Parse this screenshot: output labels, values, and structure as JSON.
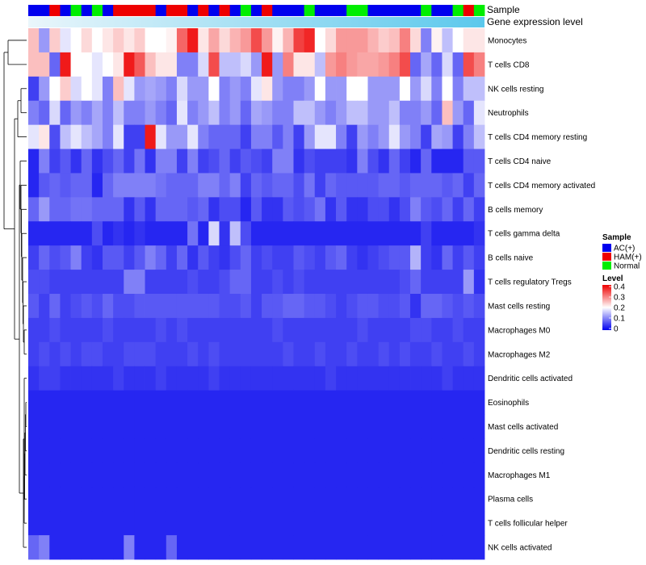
{
  "chart_data": {
    "type": "heatmap",
    "title": "",
    "annotation": {
      "sample_label": "Sample",
      "expression_label": "Gene expression level",
      "sample_groups": [
        "AC(+)",
        "HAM(+)",
        "Normal"
      ],
      "sample_colors": {
        "AC(+)": "#0000ee",
        "HAM(+)": "#ee0000",
        "Normal": "#00ee00"
      },
      "expression_color": "#5bc8ec",
      "sample_assignments": [
        "AC(+)",
        "AC(+)",
        "HAM(+)",
        "AC(+)",
        "Normal",
        "AC(+)",
        "Normal",
        "AC(+)",
        "HAM(+)",
        "HAM(+)",
        "HAM(+)",
        "HAM(+)",
        "AC(+)",
        "HAM(+)",
        "HAM(+)",
        "AC(+)",
        "HAM(+)",
        "AC(+)",
        "HAM(+)",
        "AC(+)",
        "Normal",
        "AC(+)",
        "HAM(+)",
        "AC(+)",
        "AC(+)",
        "AC(+)",
        "Normal",
        "AC(+)",
        "AC(+)",
        "AC(+)",
        "Normal",
        "Normal",
        "AC(+)",
        "AC(+)",
        "AC(+)",
        "AC(+)",
        "AC(+)",
        "Normal",
        "AC(+)",
        "AC(+)",
        "Normal",
        "HAM(+)",
        "Normal"
      ]
    },
    "rows": [
      "Monocytes",
      "T cells CD8",
      "NK cells resting",
      "Neutrophils",
      "T cells CD4 memory resting",
      "T cells CD4 naive",
      "T cells CD4 memory activated",
      "B cells memory",
      "T cells gamma delta",
      "B cells naive",
      "T cells regulatory  Tregs",
      "Mast cells resting",
      "Macrophages M0",
      "Macrophages M2",
      "Dendritic cells activated",
      "Eosinophils",
      "Mast cells activated",
      "Dendritic cells resting",
      "Macrophages M1",
      "Plasma cells",
      "T cells follicular helper",
      "NK cells activated"
    ],
    "values": [
      [
        0.25,
        0.12,
        0.24,
        0.18,
        0.2,
        0.23,
        0.2,
        0.22,
        0.24,
        0.22,
        0.24,
        0.2,
        0.2,
        0.21,
        0.32,
        0.38,
        0.22,
        0.27,
        0.23,
        0.26,
        0.28,
        0.34,
        0.28,
        0.21,
        0.26,
        0.35,
        0.37,
        0.2,
        0.23,
        0.28,
        0.28,
        0.28,
        0.26,
        0.24,
        0.25,
        0.3,
        0.23,
        0.1,
        0.21,
        0.15,
        0.2,
        0.22,
        0.22
      ],
      [
        0.25,
        0.25,
        0.08,
        0.38,
        0.2,
        0.2,
        0.18,
        0.2,
        0.22,
        0.38,
        0.33,
        0.25,
        0.22,
        0.22,
        0.1,
        0.1,
        0.17,
        0.34,
        0.15,
        0.15,
        0.17,
        0.12,
        0.38,
        0.12,
        0.3,
        0.22,
        0.22,
        0.15,
        0.28,
        0.3,
        0.28,
        0.27,
        0.27,
        0.28,
        0.3,
        0.34,
        0.08,
        0.13,
        0.08,
        0.17,
        0.08,
        0.34,
        0.3
      ],
      [
        0.05,
        0.12,
        0.2,
        0.24,
        0.17,
        0.2,
        0.18,
        0.1,
        0.25,
        0.18,
        0.12,
        0.13,
        0.12,
        0.1,
        0.17,
        0.12,
        0.12,
        0.2,
        0.1,
        0.12,
        0.1,
        0.18,
        0.22,
        0.12,
        0.1,
        0.1,
        0.12,
        0.2,
        0.12,
        0.12,
        0.2,
        0.2,
        0.12,
        0.12,
        0.12,
        0.2,
        0.12,
        0.17,
        0.1,
        0.2,
        0.1,
        0.15,
        0.15
      ],
      [
        0.1,
        0.08,
        0.17,
        0.08,
        0.12,
        0.1,
        0.13,
        0.1,
        0.15,
        0.1,
        0.1,
        0.12,
        0.1,
        0.08,
        0.18,
        0.1,
        0.12,
        0.15,
        0.1,
        0.12,
        0.08,
        0.13,
        0.12,
        0.1,
        0.1,
        0.15,
        0.15,
        0.12,
        0.1,
        0.12,
        0.15,
        0.15,
        0.12,
        0.12,
        0.15,
        0.1,
        0.1,
        0.12,
        0.08,
        0.25,
        0.12,
        0.08,
        0.18
      ],
      [
        0.18,
        0.22,
        0.06,
        0.15,
        0.18,
        0.15,
        0.13,
        0.1,
        0.18,
        0.05,
        0.05,
        0.38,
        0.18,
        0.12,
        0.12,
        0.18,
        0.1,
        0.08,
        0.08,
        0.08,
        0.05,
        0.1,
        0.1,
        0.07,
        0.1,
        0.05,
        0.12,
        0.18,
        0.18,
        0.1,
        0.05,
        0.12,
        0.1,
        0.12,
        0.18,
        0.12,
        0.1,
        0.05,
        0.13,
        0.12,
        0.05,
        0.1,
        0.15
      ],
      [
        0.03,
        0.1,
        0.05,
        0.07,
        0.04,
        0.08,
        0.04,
        0.06,
        0.08,
        0.05,
        0.09,
        0.04,
        0.1,
        0.1,
        0.05,
        0.1,
        0.05,
        0.06,
        0.08,
        0.05,
        0.07,
        0.06,
        0.05,
        0.1,
        0.1,
        0.04,
        0.06,
        0.05,
        0.05,
        0.05,
        0.04,
        0.1,
        0.06,
        0.04,
        0.08,
        0.05,
        0.03,
        0.08,
        0.03,
        0.03,
        0.03,
        0.07,
        0.07
      ],
      [
        0.03,
        0.07,
        0.08,
        0.07,
        0.08,
        0.08,
        0.03,
        0.08,
        0.1,
        0.1,
        0.1,
        0.1,
        0.09,
        0.08,
        0.08,
        0.08,
        0.1,
        0.1,
        0.08,
        0.1,
        0.05,
        0.08,
        0.07,
        0.08,
        0.08,
        0.06,
        0.09,
        0.05,
        0.08,
        0.07,
        0.07,
        0.07,
        0.07,
        0.08,
        0.08,
        0.07,
        0.08,
        0.08,
        0.08,
        0.07,
        0.08,
        0.05,
        0.08
      ],
      [
        0.08,
        0.12,
        0.08,
        0.08,
        0.09,
        0.09,
        0.08,
        0.08,
        0.08,
        0.04,
        0.07,
        0.04,
        0.08,
        0.08,
        0.08,
        0.07,
        0.08,
        0.04,
        0.06,
        0.06,
        0.03,
        0.07,
        0.04,
        0.04,
        0.07,
        0.06,
        0.07,
        0.09,
        0.04,
        0.07,
        0.04,
        0.04,
        0.06,
        0.06,
        0.04,
        0.06,
        0.1,
        0.07,
        0.06,
        0.08,
        0.05,
        0.08,
        0.05
      ],
      [
        0.03,
        0.03,
        0.03,
        0.03,
        0.03,
        0.03,
        0.06,
        0.03,
        0.04,
        0.03,
        0.04,
        0.03,
        0.03,
        0.03,
        0.03,
        0.09,
        0.03,
        0.17,
        0.04,
        0.15,
        0.06,
        0.03,
        0.03,
        0.03,
        0.03,
        0.03,
        0.03,
        0.03,
        0.03,
        0.03,
        0.03,
        0.03,
        0.03,
        0.03,
        0.03,
        0.03,
        0.03,
        0.05,
        0.03,
        0.03,
        0.03,
        0.03,
        0.04
      ],
      [
        0.05,
        0.08,
        0.06,
        0.07,
        0.1,
        0.05,
        0.04,
        0.07,
        0.07,
        0.05,
        0.07,
        0.1,
        0.08,
        0.05,
        0.08,
        0.04,
        0.07,
        0.05,
        0.04,
        0.06,
        0.08,
        0.05,
        0.06,
        0.05,
        0.05,
        0.07,
        0.06,
        0.05,
        0.07,
        0.08,
        0.05,
        0.04,
        0.05,
        0.06,
        0.07,
        0.07,
        0.14,
        0.05,
        0.04,
        0.08,
        0.05,
        0.07,
        0.05
      ],
      [
        0.06,
        0.06,
        0.05,
        0.05,
        0.05,
        0.05,
        0.05,
        0.05,
        0.05,
        0.1,
        0.1,
        0.05,
        0.05,
        0.05,
        0.05,
        0.06,
        0.05,
        0.05,
        0.06,
        0.08,
        0.08,
        0.05,
        0.05,
        0.06,
        0.05,
        0.06,
        0.05,
        0.05,
        0.05,
        0.05,
        0.05,
        0.05,
        0.05,
        0.05,
        0.05,
        0.06,
        0.08,
        0.05,
        0.05,
        0.05,
        0.05,
        0.12,
        0.04
      ],
      [
        0.07,
        0.05,
        0.08,
        0.05,
        0.06,
        0.07,
        0.06,
        0.08,
        0.06,
        0.06,
        0.07,
        0.07,
        0.07,
        0.07,
        0.07,
        0.07,
        0.07,
        0.07,
        0.06,
        0.06,
        0.07,
        0.05,
        0.07,
        0.07,
        0.08,
        0.08,
        0.07,
        0.07,
        0.06,
        0.05,
        0.06,
        0.07,
        0.07,
        0.06,
        0.06,
        0.07,
        0.04,
        0.08,
        0.08,
        0.07,
        0.06,
        0.07,
        0.06
      ],
      [
        0.05,
        0.05,
        0.06,
        0.05,
        0.05,
        0.05,
        0.05,
        0.06,
        0.05,
        0.05,
        0.05,
        0.05,
        0.06,
        0.05,
        0.06,
        0.05,
        0.05,
        0.05,
        0.05,
        0.05,
        0.05,
        0.05,
        0.05,
        0.06,
        0.05,
        0.05,
        0.05,
        0.05,
        0.05,
        0.05,
        0.05,
        0.06,
        0.05,
        0.05,
        0.05,
        0.05,
        0.06,
        0.06,
        0.05,
        0.05,
        0.06,
        0.05,
        0.05
      ],
      [
        0.05,
        0.06,
        0.05,
        0.06,
        0.05,
        0.06,
        0.06,
        0.05,
        0.05,
        0.06,
        0.06,
        0.06,
        0.05,
        0.05,
        0.05,
        0.06,
        0.05,
        0.06,
        0.05,
        0.05,
        0.05,
        0.05,
        0.05,
        0.05,
        0.06,
        0.05,
        0.05,
        0.06,
        0.05,
        0.05,
        0.06,
        0.05,
        0.05,
        0.06,
        0.05,
        0.06,
        0.05,
        0.05,
        0.06,
        0.05,
        0.05,
        0.06,
        0.05
      ],
      [
        0.04,
        0.05,
        0.05,
        0.04,
        0.04,
        0.04,
        0.04,
        0.04,
        0.05,
        0.04,
        0.04,
        0.04,
        0.05,
        0.04,
        0.04,
        0.04,
        0.04,
        0.05,
        0.04,
        0.04,
        0.04,
        0.04,
        0.04,
        0.04,
        0.04,
        0.04,
        0.04,
        0.04,
        0.05,
        0.04,
        0.04,
        0.04,
        0.04,
        0.04,
        0.04,
        0.04,
        0.04,
        0.04,
        0.04,
        0.05,
        0.04,
        0.04,
        0.04
      ],
      [
        0.03,
        0.03,
        0.03,
        0.03,
        0.03,
        0.03,
        0.03,
        0.03,
        0.03,
        0.03,
        0.03,
        0.03,
        0.03,
        0.03,
        0.03,
        0.03,
        0.03,
        0.03,
        0.03,
        0.03,
        0.03,
        0.03,
        0.03,
        0.03,
        0.03,
        0.03,
        0.03,
        0.03,
        0.03,
        0.03,
        0.03,
        0.03,
        0.03,
        0.03,
        0.03,
        0.03,
        0.03,
        0.03,
        0.03,
        0.03,
        0.03,
        0.03,
        0.03
      ],
      [
        0.03,
        0.03,
        0.03,
        0.03,
        0.03,
        0.03,
        0.03,
        0.03,
        0.03,
        0.03,
        0.03,
        0.03,
        0.03,
        0.03,
        0.03,
        0.03,
        0.03,
        0.03,
        0.03,
        0.03,
        0.03,
        0.03,
        0.03,
        0.03,
        0.03,
        0.03,
        0.03,
        0.03,
        0.03,
        0.03,
        0.03,
        0.03,
        0.03,
        0.03,
        0.03,
        0.03,
        0.03,
        0.03,
        0.03,
        0.03,
        0.03,
        0.03,
        0.03
      ],
      [
        0.03,
        0.03,
        0.03,
        0.03,
        0.03,
        0.03,
        0.03,
        0.03,
        0.03,
        0.03,
        0.03,
        0.03,
        0.03,
        0.03,
        0.03,
        0.03,
        0.03,
        0.03,
        0.03,
        0.03,
        0.03,
        0.03,
        0.03,
        0.03,
        0.03,
        0.03,
        0.03,
        0.03,
        0.03,
        0.03,
        0.03,
        0.03,
        0.03,
        0.03,
        0.03,
        0.03,
        0.03,
        0.03,
        0.03,
        0.03,
        0.03,
        0.03,
        0.03
      ],
      [
        0.03,
        0.03,
        0.03,
        0.03,
        0.03,
        0.03,
        0.03,
        0.03,
        0.03,
        0.03,
        0.03,
        0.03,
        0.03,
        0.03,
        0.03,
        0.03,
        0.03,
        0.03,
        0.03,
        0.03,
        0.03,
        0.03,
        0.03,
        0.03,
        0.03,
        0.03,
        0.03,
        0.03,
        0.03,
        0.03,
        0.03,
        0.03,
        0.03,
        0.03,
        0.03,
        0.03,
        0.03,
        0.03,
        0.03,
        0.03,
        0.03,
        0.03,
        0.03
      ],
      [
        0.03,
        0.03,
        0.03,
        0.03,
        0.03,
        0.03,
        0.03,
        0.03,
        0.03,
        0.03,
        0.03,
        0.03,
        0.03,
        0.03,
        0.03,
        0.03,
        0.03,
        0.03,
        0.03,
        0.03,
        0.03,
        0.03,
        0.03,
        0.03,
        0.03,
        0.03,
        0.03,
        0.03,
        0.03,
        0.03,
        0.03,
        0.03,
        0.03,
        0.03,
        0.03,
        0.03,
        0.03,
        0.03,
        0.03,
        0.03,
        0.03,
        0.03,
        0.03
      ],
      [
        0.03,
        0.03,
        0.03,
        0.03,
        0.03,
        0.03,
        0.03,
        0.03,
        0.03,
        0.03,
        0.03,
        0.03,
        0.03,
        0.03,
        0.03,
        0.03,
        0.03,
        0.03,
        0.03,
        0.03,
        0.03,
        0.03,
        0.03,
        0.03,
        0.03,
        0.03,
        0.03,
        0.03,
        0.03,
        0.03,
        0.03,
        0.03,
        0.03,
        0.03,
        0.03,
        0.03,
        0.03,
        0.03,
        0.03,
        0.03,
        0.03,
        0.03,
        0.03
      ],
      [
        0.08,
        0.1,
        0.03,
        0.03,
        0.03,
        0.03,
        0.03,
        0.03,
        0.03,
        0.1,
        0.03,
        0.03,
        0.03,
        0.08,
        0.03,
        0.03,
        0.03,
        0.03,
        0.03,
        0.03,
        0.03,
        0.03,
        0.03,
        0.03,
        0.03,
        0.03,
        0.03,
        0.03,
        0.03,
        0.03,
        0.03,
        0.03,
        0.03,
        0.03,
        0.03,
        0.03,
        0.03,
        0.03,
        0.03,
        0.03,
        0.03,
        0.03,
        0.03
      ]
    ],
    "color_scale": {
      "min": 0,
      "mid": 0.2,
      "max": 0.4,
      "low": "#0000ee",
      "midcolor": "#ffffff",
      "high": "#ee0000"
    },
    "legend": {
      "sample_title": "Sample",
      "level_title": "Level",
      "level_ticks": [
        "0.4",
        "0.3",
        "0.2",
        "0.1",
        "0"
      ],
      "placement": "right"
    },
    "row_dendrogram": true
  }
}
